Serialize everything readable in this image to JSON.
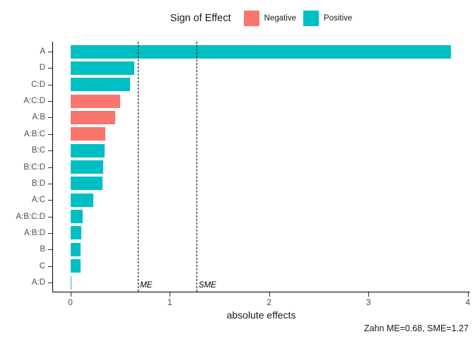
{
  "legend": {
    "title": "Sign of Effect",
    "items": [
      {
        "label": "Negative",
        "color": "#F8766D"
      },
      {
        "label": "Positive",
        "color": "#00BFC4"
      }
    ]
  },
  "caption": "Zahn ME=0.68, SME=1.27",
  "chart_data": {
    "type": "bar",
    "orientation": "horizontal",
    "title": "",
    "xlabel": "absolute effects",
    "ylabel": "",
    "xlim": [
      0,
      4
    ],
    "x_ticks": [
      0,
      1,
      2,
      3,
      4
    ],
    "grid": false,
    "legend_position": "top",
    "legend_title": "Sign of Effect",
    "categories": [
      "A",
      "D",
      "C:D",
      "A:C:D",
      "A:B",
      "A:B:C",
      "B:C",
      "B:C:D",
      "B:D",
      "A:C",
      "A:B:C:D",
      "A:B:D",
      "B",
      "C",
      "A:D"
    ],
    "values": [
      3.83,
      0.64,
      0.6,
      0.5,
      0.45,
      0.35,
      0.34,
      0.33,
      0.32,
      0.23,
      0.12,
      0.11,
      0.1,
      0.1,
      0.01
    ],
    "signs": [
      "Positive",
      "Positive",
      "Positive",
      "Negative",
      "Negative",
      "Negative",
      "Positive",
      "Positive",
      "Positive",
      "Positive",
      "Positive",
      "Positive",
      "Positive",
      "Positive",
      "Positive"
    ],
    "sign_colors": {
      "Negative": "#F8766D",
      "Positive": "#00BFC4"
    },
    "reference_lines": [
      {
        "label": "ME",
        "value": 0.68
      },
      {
        "label": "SME",
        "value": 1.27
      }
    ],
    "caption": "Zahn ME=0.68, SME=1.27"
  }
}
